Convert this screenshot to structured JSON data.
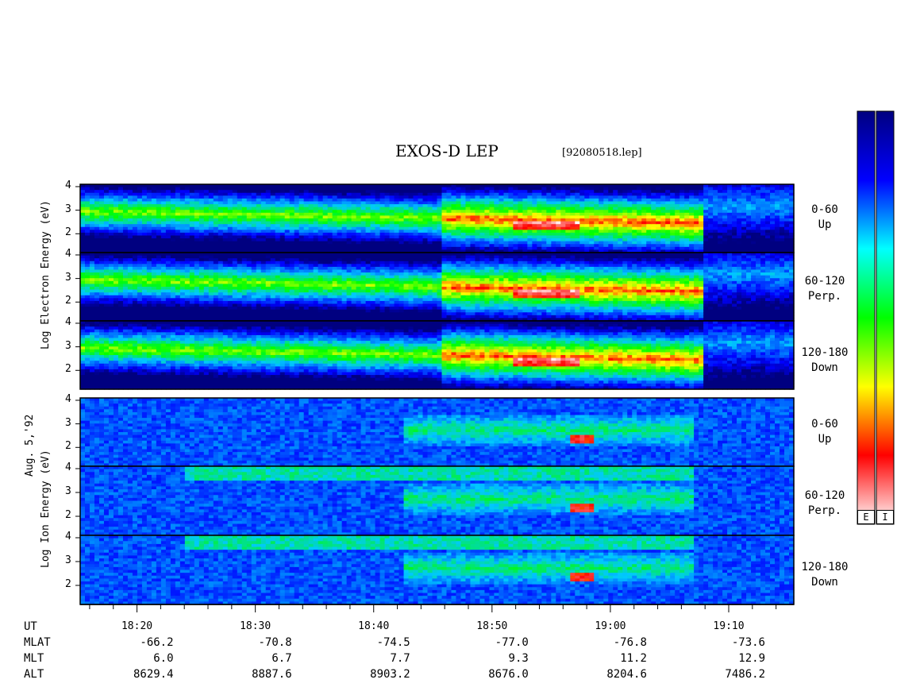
{
  "title": "EXOS-D LEP",
  "filename": "[92080518.lep]",
  "chart_data": [
    {
      "type": "heatmap",
      "group": "electron",
      "panel": "0-60 Up",
      "pitch_angle": "0-60",
      "direction": "Up",
      "ylabel": "Log Electron Energy (eV)",
      "yticks": [
        "4",
        "3",
        "2"
      ],
      "ylim": [
        1.2,
        4.1
      ]
    },
    {
      "type": "heatmap",
      "group": "electron",
      "panel": "60-120 Perp.",
      "pitch_angle": "60-120",
      "direction": "Perp.",
      "ylabel": "Log Electron Energy (eV)",
      "yticks": [
        "4",
        "3",
        "2"
      ],
      "ylim": [
        1.2,
        4.1
      ]
    },
    {
      "type": "heatmap",
      "group": "electron",
      "panel": "120-180 Down",
      "pitch_angle": "120-180",
      "direction": "Down",
      "ylabel": "Log Electron Energy (eV)",
      "yticks": [
        "4",
        "3",
        "2"
      ],
      "ylim": [
        1.2,
        4.1
      ]
    },
    {
      "type": "heatmap",
      "group": "ion",
      "panel": "0-60 Up",
      "pitch_angle": "0-60",
      "direction": "Up",
      "ylabel": "Log Ion Energy (eV)",
      "yticks": [
        "4",
        "3",
        "2"
      ],
      "ylim": [
        1.2,
        4.1
      ]
    },
    {
      "type": "heatmap",
      "group": "ion",
      "panel": "60-120 Perp.",
      "pitch_angle": "60-120",
      "direction": "Perp.",
      "ylabel": "Log Ion Energy (eV)",
      "yticks": [
        "4",
        "3",
        "2"
      ],
      "ylim": [
        1.2,
        4.1
      ]
    },
    {
      "type": "heatmap",
      "group": "ion",
      "panel": "120-180 Down",
      "pitch_angle": "120-180",
      "direction": "Down",
      "ylabel": "Log Ion Energy (eV)",
      "yticks": [
        "4",
        "3",
        "2"
      ],
      "ylim": [
        1.2,
        4.1
      ]
    }
  ],
  "axis_labels": {
    "electron": "Log Electron Energy (eV)",
    "ion": "Log Ion Energy (eV)",
    "date": "Aug. 5,'92"
  },
  "panel_labels": [
    {
      "range": "0-60",
      "direction": "Up"
    },
    {
      "range": "60-120",
      "direction": "Perp."
    },
    {
      "range": "120-180",
      "direction": "Down"
    },
    {
      "range": "0-60",
      "direction": "Up"
    },
    {
      "range": "60-120",
      "direction": "Perp."
    },
    {
      "range": "120-180",
      "direction": "Down"
    }
  ],
  "ytick_labels": [
    "4",
    "3",
    "2"
  ],
  "x_axis": {
    "ticks": [
      "18:20",
      "18:30",
      "18:40",
      "18:50",
      "19:00",
      "19:10"
    ]
  },
  "ephemeris": {
    "labels": [
      "UT",
      "MLAT",
      "MLT",
      "ALT"
    ],
    "MLAT": [
      "-66.2",
      "-70.8",
      "-74.5",
      "-77.0",
      "-76.8",
      "-73.6"
    ],
    "MLT": [
      "6.0",
      "6.7",
      "7.7",
      "9.3",
      "11.2",
      "12.9"
    ],
    "ALT": [
      "8629.4",
      "8887.6",
      "8903.2",
      "8676.0",
      "8204.6",
      "7486.2"
    ]
  },
  "colorbar": {
    "colors": [
      "#000080",
      "#0000ff",
      "#00ffff",
      "#00ff00",
      "#ffff00",
      "#ff0000",
      "#ffffff"
    ],
    "labels": [
      "E",
      "I"
    ]
  }
}
